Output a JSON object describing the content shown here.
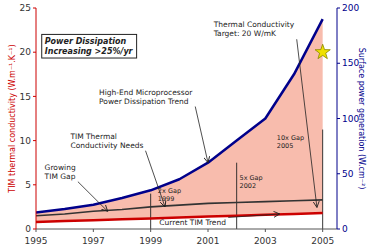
{
  "chart_data": {
    "type": "line",
    "x": [
      1995,
      1996,
      1997,
      1998,
      1999,
      2000,
      2001,
      2002,
      2003,
      2004,
      2005
    ],
    "xlim": [
      1995,
      2005.5
    ],
    "xticks": [
      1995,
      1997,
      1999,
      2001,
      2003,
      2005
    ],
    "ylim": [
      0,
      25
    ],
    "yticks": [
      0,
      5,
      10,
      15,
      20,
      25
    ],
    "y2lim": [
      0,
      200
    ],
    "y2ticks": [
      0,
      50,
      100,
      150,
      200
    ],
    "ylabel": "TIM thermal conductivity (W.m⁻¹.K⁻¹)",
    "y2label": "Surface power generation (W.cm⁻²)",
    "grid": false,
    "series": [
      {
        "color": "#cc0000",
        "values": [
          0.8,
          0.9,
          1.0,
          1.1,
          1.2,
          1.3,
          1.4,
          1.5,
          1.6,
          1.7,
          1.8
        ]
      },
      {
        "color": "#333333",
        "values": [
          1.5,
          1.7,
          2.0,
          2.2,
          2.5,
          2.7,
          2.9,
          3.0,
          3.1,
          3.2,
          3.3
        ]
      },
      {
        "color": "#00008B",
        "axis": "y2",
        "values": [
          15,
          18,
          22,
          28,
          35,
          45,
          60,
          80,
          100,
          140,
          190
        ]
      },
      {
        "type": "scatter",
        "marker": "star",
        "color": "#f0e000",
        "axis": "y2",
        "x": [
          2005
        ],
        "values": [
          160
        ]
      }
    ],
    "annotations": [
      {
        "type": "box",
        "text": "Power Dissipation\nIncreasing >25%/yr"
      },
      {
        "text": "Thermal Conductivity\nTarget: 20 W/mK",
        "x": 2004.8,
        "y": 2.4375
      },
      {
        "text": "High-End Microprocessor\nPower Dissipation Trend",
        "x": 2001.0,
        "y": 7.5
      },
      {
        "text": "TIM Thermal\nConductivity Needs",
        "x": 1999.5,
        "y": 2.5
      },
      {
        "text": "Growing\nTIM Gap",
        "x": 1997.5,
        "y": 2.0
      },
      {
        "type": "vline",
        "text": "2x Gap\n1999",
        "x": 1999,
        "y": 4
      },
      {
        "type": "vline",
        "text": "5x Gap\n2002",
        "x": 2002,
        "y": 7.5
      },
      {
        "type": "vline",
        "text": "10x Gap\n2005",
        "x": 2005,
        "y": 11.25
      },
      {
        "text": "Current TIM Trend",
        "x": 2003.5,
        "y": 1.7
      }
    ]
  }
}
